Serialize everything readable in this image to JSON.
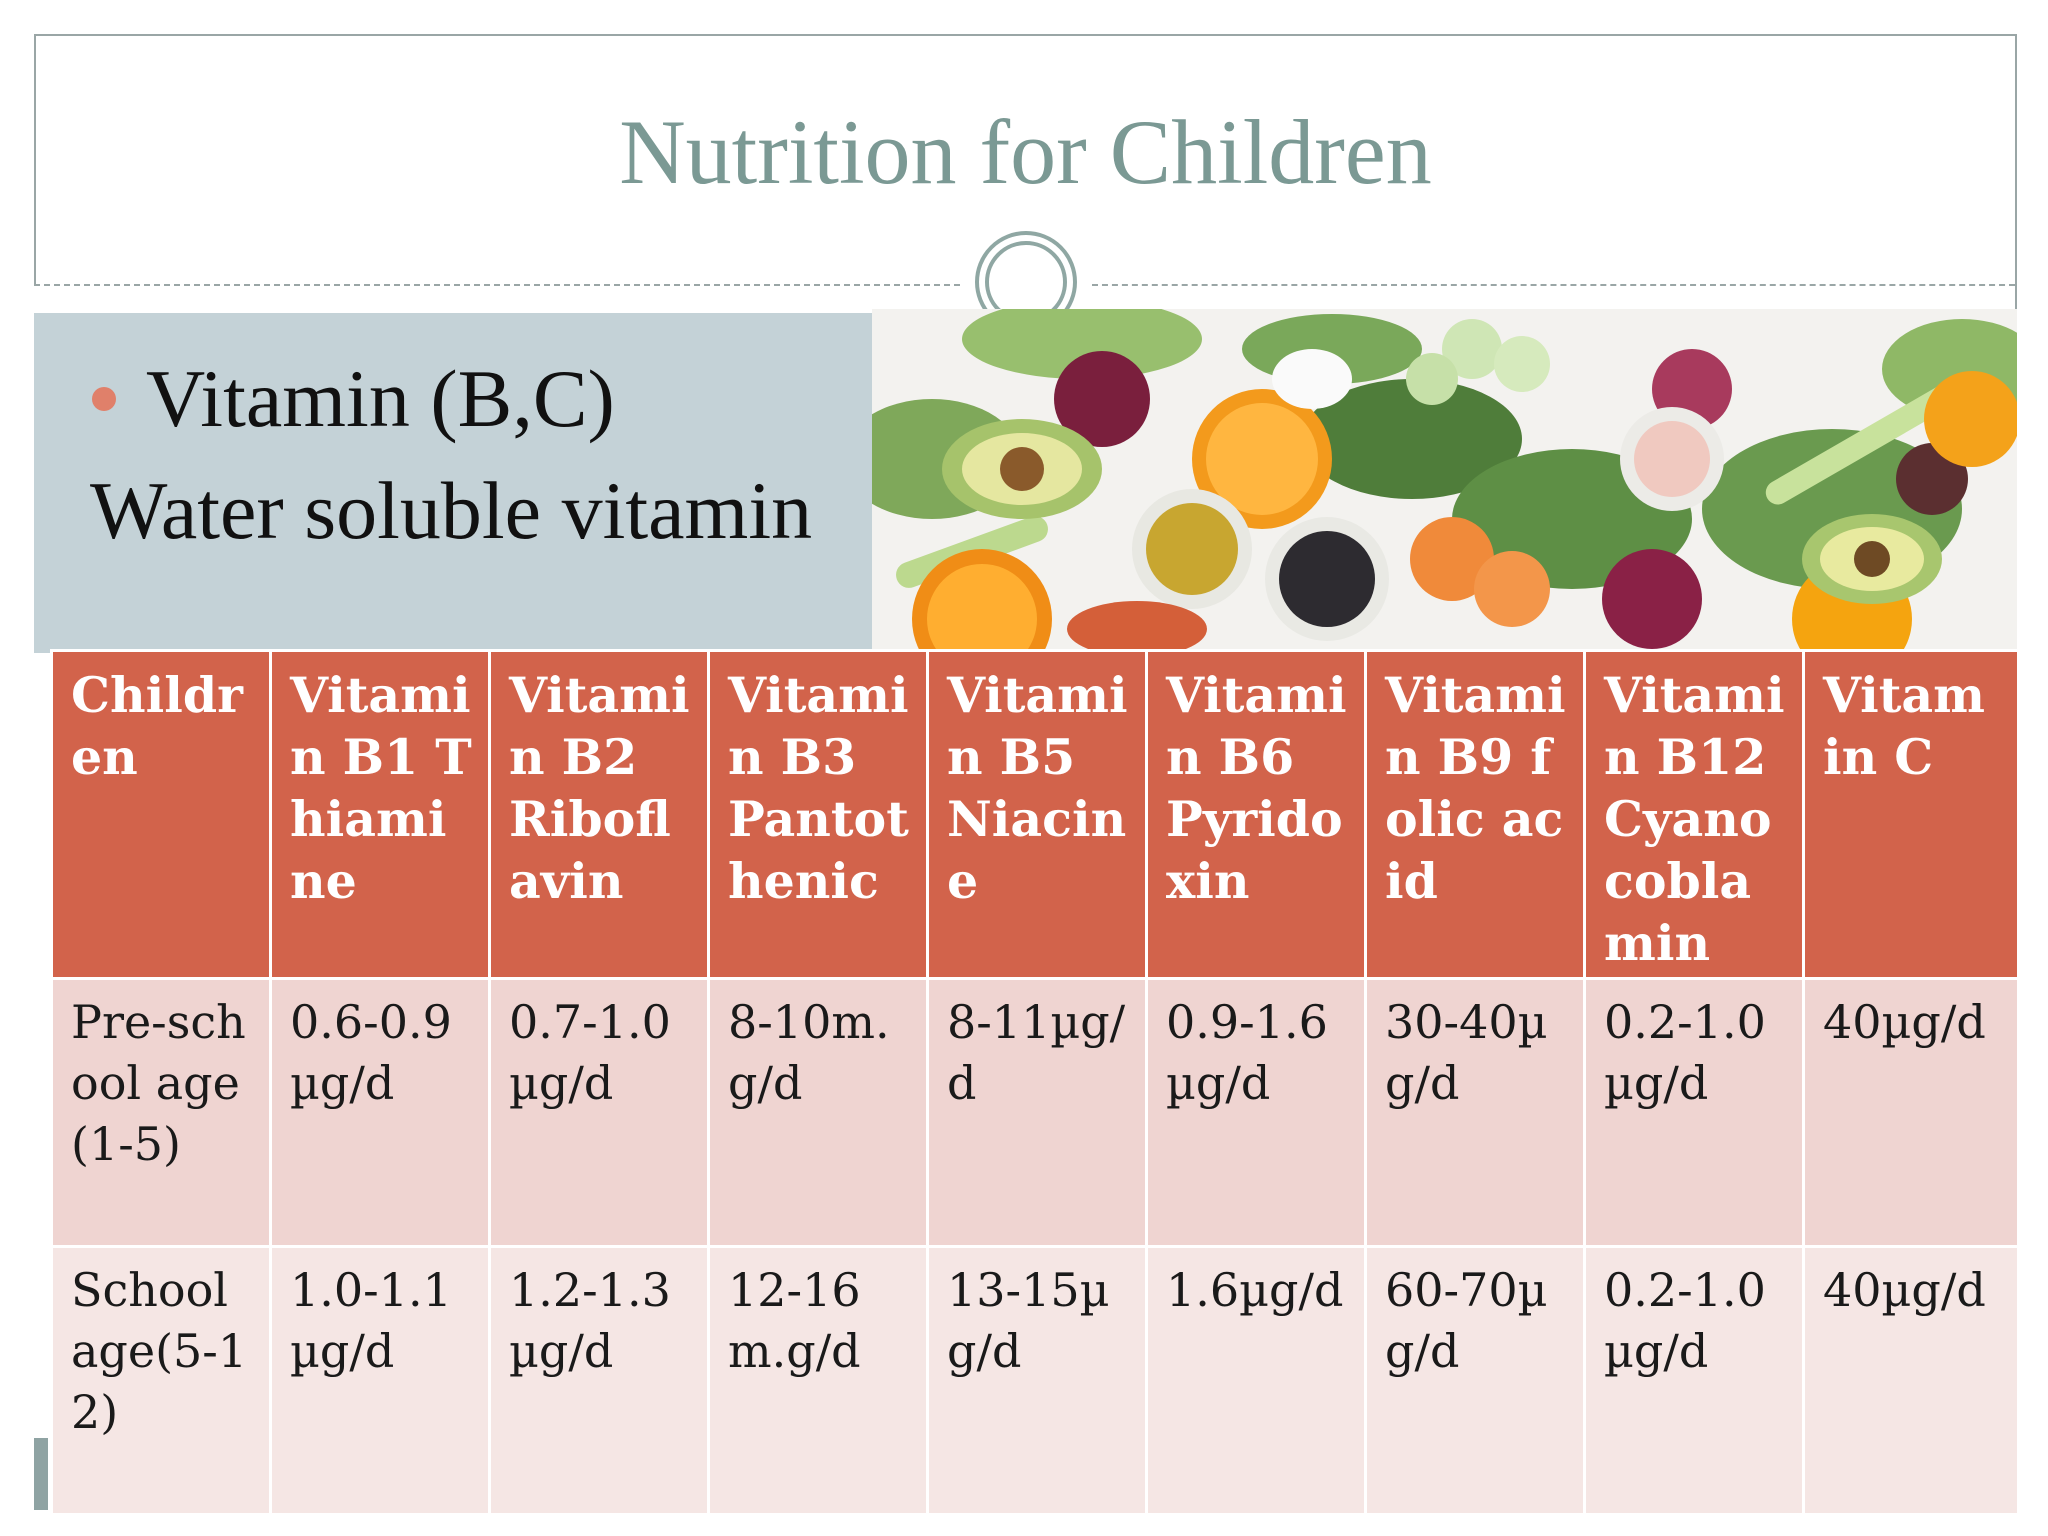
{
  "title": "Nutrition for Children",
  "bullet": "Vitamin (B,C)",
  "subtitle": "Water soluble vitamin",
  "colors": {
    "title": "#7b9994",
    "panel": "#c4d2d7",
    "bullet": "#e0806a",
    "header": "#d2634b",
    "row1": "#efd4d1",
    "row2": "#f5e6e4"
  },
  "photo": {
    "icon": "vegetables-fruits-photo"
  },
  "table": {
    "headers": [
      "Children",
      "Vitamin B1 Thiamine",
      "Vitamin B2 Riboflavin",
      "Vitamin B3 Pantothenic",
      "Vitamin B5 Niacine",
      "Vitamin B6 Pyridoxin",
      "Vitamin B9 folic acid",
      "Vitamin B12 Cyanocoblamin",
      "Vitamin C"
    ],
    "rows": [
      [
        "Pre-school age(1-5)",
        "0.6-0.9µg/d",
        "0.7-1.0µg/d",
        "8-10m.g/d",
        "8-11µg/d",
        "0.9-1.6µg/d",
        "30-40µg/d",
        "0.2-1.0µg/d",
        "40µg/d"
      ],
      [
        "School age(5-12)",
        "1.0-1.1µg/d",
        "1.2-1.3µg/d",
        "12-16m.g/d",
        "13-15µg/d",
        "1.6µg/d",
        "60-70µg/d",
        "0.2-1.0µg/d",
        "40µg/d"
      ]
    ]
  }
}
